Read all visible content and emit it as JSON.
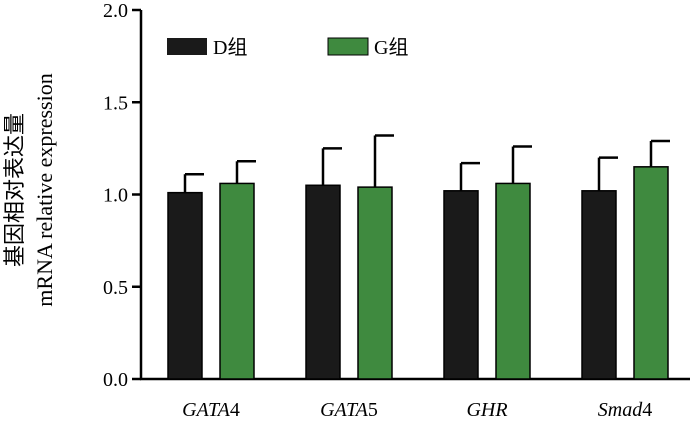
{
  "chart_data": {
    "type": "bar",
    "title": "",
    "xlabel": "",
    "ylabel_line1": "基因相对表达量",
    "ylabel_line2": "mRNA relative expression",
    "ylim": [
      0,
      2.0
    ],
    "yticks": [
      "0.0",
      "0.5",
      "1.0",
      "1.5",
      "2.0"
    ],
    "categories": [
      {
        "italic": "GATA",
        "suffix": "4"
      },
      {
        "italic": "GATA",
        "suffix": "5"
      },
      {
        "italic": "GHR",
        "suffix": ""
      },
      {
        "italic": "Smad",
        "suffix": "4"
      }
    ],
    "series": [
      {
        "name": "D组",
        "color": "#1a1a1a",
        "values": [
          1.01,
          1.05,
          1.02,
          1.02
        ],
        "errors": [
          0.1,
          0.2,
          0.15,
          0.18
        ]
      },
      {
        "name": "G组",
        "color": "#3f8a3f",
        "values": [
          1.06,
          1.04,
          1.06,
          1.15
        ],
        "errors": [
          0.12,
          0.28,
          0.2,
          0.14
        ]
      }
    ],
    "legend_position": "top-left"
  }
}
